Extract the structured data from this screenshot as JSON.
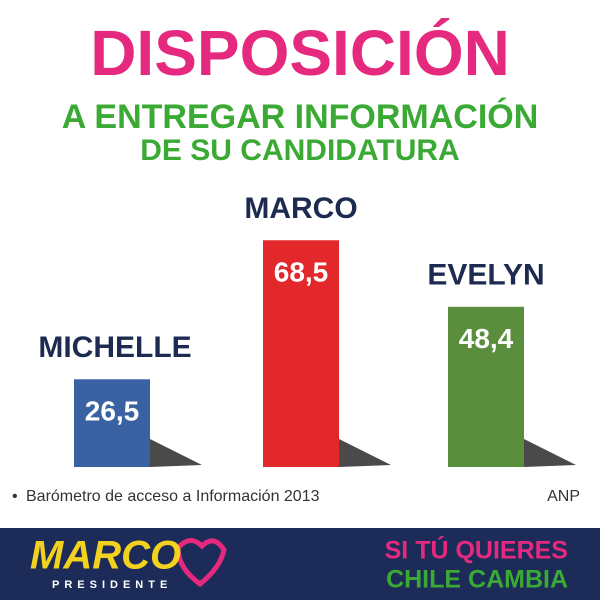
{
  "chart_data": {
    "type": "bar",
    "title": "DISPOSICIÓN",
    "subtitle": [
      "A ENTREGAR INFORMACIÓN",
      "DE SU CANDIDATURA"
    ],
    "categories": [
      "MICHELLE",
      "MARCO",
      "EVELYN"
    ],
    "values": [
      26.5,
      68.5,
      48.4
    ],
    "value_labels": [
      "26,5",
      "68,5",
      "48,4"
    ],
    "colors": [
      "#3a62a3",
      "#e2282b",
      "#5a8e3c"
    ],
    "source": "Barómetro de acceso a Información 2013",
    "source_credit": "ANP"
  },
  "footer": {
    "logo": "MARCO",
    "logo_sub": "PRESIDENTE",
    "slogan": [
      "SI TÚ QUIERES",
      "CHILE CAMBIA"
    ]
  }
}
